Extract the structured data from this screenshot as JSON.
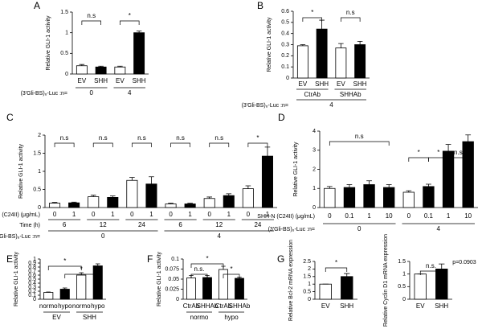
{
  "chart_data": [
    {
      "type": "bar",
      "panel": "A",
      "y_label": "Relative GLI-1 activity",
      "ylim": [
        0,
        1.5
      ],
      "yticks": [
        0,
        0.5,
        1,
        1.5
      ],
      "values": [
        0.2,
        0.17,
        0.17,
        1.0
      ],
      "errors": [
        0.03,
        0.02,
        0.02,
        0.04
      ],
      "fills": [
        "#ffffff",
        "#000000",
        "#ffffff",
        "#000000"
      ],
      "rows": [
        {
          "labels": [
            "EV",
            "SHH",
            "EV",
            "SHH"
          ]
        },
        {
          "label": "(3'Gli-BS)₆-Luc :n=",
          "labels": [
            "0",
            "4"
          ]
        }
      ],
      "annotations": [
        "n.s",
        "*"
      ]
    },
    {
      "type": "bar",
      "panel": "B",
      "y_label": "Relative GLI-1 activity",
      "ylim": [
        0,
        0.6
      ],
      "yticks": [
        0,
        0.1,
        0.2,
        0.3,
        0.4,
        0.5,
        0.6
      ],
      "values": [
        0.29,
        0.44,
        0.27,
        0.3
      ],
      "errors": [
        0.01,
        0.08,
        0.04,
        0.03
      ],
      "fills": [
        "#ffffff",
        "#000000",
        "#ffffff",
        "#000000"
      ],
      "rows": [
        {
          "labels": [
            "EV",
            "SHH",
            "EV",
            "SHH"
          ]
        },
        {
          "labels": [
            "CtrAb",
            "SHHAb"
          ]
        },
        {
          "label": "(3'Gli-BS)₆-Luc :n=",
          "labels": [
            "4"
          ]
        }
      ],
      "annotations": [
        "*",
        "n.s"
      ]
    },
    {
      "type": "bar",
      "panel": "C",
      "y_label": "Relative GLI-1 activity",
      "ylim": [
        0,
        2
      ],
      "yticks": [
        0,
        0.5,
        1,
        1.5,
        2
      ],
      "values": [
        0.12,
        0.13,
        0.3,
        0.28,
        0.75,
        0.65,
        0.1,
        0.1,
        0.25,
        0.33,
        0.52,
        1.42
      ],
      "errors": [
        0.02,
        0.02,
        0.04,
        0.04,
        0.08,
        0.2,
        0.02,
        0.02,
        0.04,
        0.05,
        0.08,
        0.25
      ],
      "fills": [
        "#ffffff",
        "#000000",
        "#ffffff",
        "#000000",
        "#ffffff",
        "#000000",
        "#ffffff",
        "#000000",
        "#ffffff",
        "#000000",
        "#ffffff",
        "#000000"
      ],
      "rows": [
        {
          "label": "SHH-N (C24II) (μg/mL)",
          "labels": [
            "0",
            "1",
            "0",
            "1",
            "0",
            "1",
            "0",
            "1",
            "0",
            "1",
            "0",
            "1"
          ]
        },
        {
          "label": "Time (h)",
          "labels": [
            "6",
            "12",
            "24",
            "6",
            "12",
            "24"
          ]
        },
        {
          "label": "(3'Gli-BS)₆-Luc :n=",
          "labels": [
            "0",
            "4"
          ]
        }
      ],
      "annotations": [
        "n.s",
        "n.s",
        "n.s",
        "n.s",
        "n.s",
        "*"
      ]
    },
    {
      "type": "bar",
      "panel": "D",
      "y_label": "Relative GLI-1 activity",
      "ylim": [
        0,
        4
      ],
      "yticks": [
        0,
        1,
        2,
        3,
        4
      ],
      "values": [
        1.0,
        1.05,
        1.2,
        1.05,
        0.8,
        1.1,
        2.95,
        3.45
      ],
      "errors": [
        0.1,
        0.15,
        0.2,
        0.15,
        0.08,
        0.12,
        0.35,
        0.35
      ],
      "fills": [
        "#ffffff",
        "#000000",
        "#000000",
        "#000000",
        "#ffffff",
        "#000000",
        "#000000",
        "#000000"
      ],
      "rows": [
        {
          "label": "SHH-N (C24II) (μg/mL)",
          "labels": [
            "0",
            "0.1",
            "1",
            "10",
            "0",
            "0.1",
            "1",
            "10"
          ]
        },
        {
          "label": "(3'Gli-BS)₆-Luc :n=",
          "labels": [
            "0",
            "4"
          ]
        }
      ],
      "annotations": [
        "n.s",
        "*",
        "*",
        "n.s"
      ]
    },
    {
      "type": "bar",
      "panel": "E",
      "y_label": "Relative GLI-1 activity",
      "ylim": [
        0,
        1
      ],
      "yticks": [
        0,
        0.1,
        0.2,
        0.3,
        0.4,
        0.5,
        0.6,
        0.7,
        0.8,
        0.9,
        1
      ],
      "values": [
        0.17,
        0.25,
        0.6,
        0.83
      ],
      "errors": [
        0.01,
        0.03,
        0.06,
        0.05
      ],
      "fills": [
        "#ffffff",
        "#000000",
        "#ffffff",
        "#000000"
      ],
      "rows": [
        {
          "labels": [
            "normo",
            "hypo",
            "normo",
            "hypo"
          ]
        },
        {
          "labels": [
            "EV",
            "SHH"
          ]
        }
      ],
      "annotations": [
        "*",
        "*"
      ]
    },
    {
      "type": "bar",
      "panel": "F",
      "y_label": "Relative GLI-1 activity",
      "ylim": [
        0,
        0.1
      ],
      "yticks": [
        0,
        0.025,
        0.05,
        0.075,
        0.1
      ],
      "values": [
        0.053,
        0.054,
        0.074,
        0.052
      ],
      "errors": [
        0.006,
        0.005,
        0.008,
        0.003
      ],
      "fills": [
        "#ffffff",
        "#000000",
        "#ffffff",
        "#000000"
      ],
      "rows": [
        {
          "labels": [
            "CtrAb",
            "SHHAb",
            "CtrAb",
            "SHHAb"
          ]
        },
        {
          "labels": [
            "normo",
            "hypo"
          ]
        }
      ],
      "annotations": [
        "n.s.",
        "*",
        "*"
      ]
    },
    {
      "type": "bar",
      "panel": "G",
      "y_label": "Relative Bcl-2 mRNA expression",
      "ylim": [
        0,
        2.5
      ],
      "yticks": [
        0,
        0.5,
        1,
        1.5,
        2,
        2.5
      ],
      "values": [
        1.0,
        1.5
      ],
      "errors": [
        0,
        0.2
      ],
      "fills": [
        "#ffffff",
        "#000000"
      ],
      "rows": [
        {
          "labels": [
            "EV",
            "SHH"
          ]
        }
      ],
      "annotations": [
        "*"
      ]
    },
    {
      "type": "bar",
      "y_label": "Relative Cyclin D1 mRNA expression",
      "ylim": [
        0,
        1.5
      ],
      "yticks": [
        0,
        0.5,
        1,
        1.5
      ],
      "values": [
        1.0,
        1.2
      ],
      "errors": [
        0,
        0.2
      ],
      "fills": [
        "#ffffff",
        "#000000"
      ],
      "rows": [
        {
          "labels": [
            "EV",
            "SHH"
          ]
        }
      ],
      "annotations": [
        "n.s.",
        "p=0.0903"
      ]
    }
  ]
}
